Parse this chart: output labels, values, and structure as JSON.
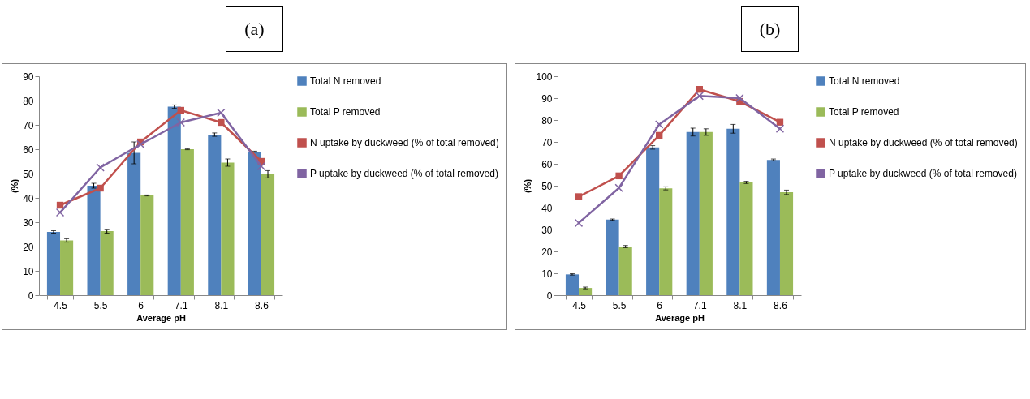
{
  "chart_data": [
    {
      "type": "bar",
      "title": "(a)",
      "xlabel": "Average pH",
      "ylabel": "(%)",
      "categories": [
        "4.5",
        "5.5",
        "6",
        "7.1",
        "8.1",
        "8.6"
      ],
      "ylim": [
        0,
        90
      ],
      "yticks": [
        0,
        10,
        20,
        30,
        40,
        50,
        60,
        70,
        80,
        90
      ],
      "legend": "right",
      "grid": false,
      "series": [
        {
          "name": "Total N removed",
          "type": "bar",
          "color": "#4f81bd",
          "values": [
            26,
            45,
            58.5,
            77.5,
            66,
            59
          ],
          "errors": [
            0.5,
            1,
            4.5,
            0.7,
            0.7,
            0.2
          ]
        },
        {
          "name": "Total P removed",
          "type": "bar",
          "color": "#9bbb59",
          "values": [
            22.5,
            26.3,
            41,
            60,
            54.5,
            49.7
          ],
          "errors": [
            0.7,
            0.8,
            0.2,
            0.2,
            1.5,
            1.5
          ]
        },
        {
          "name": "N uptake by duckweed (% of total removed)",
          "type": "line",
          "marker": "square",
          "color": "#c0504d",
          "values": [
            37,
            44,
            63,
            76,
            71,
            55
          ]
        },
        {
          "name": "P uptake by duckweed (% of total removed)",
          "type": "line",
          "marker": "cross",
          "color": "#8064a2",
          "values": [
            34,
            52.5,
            62,
            71,
            75,
            53
          ]
        }
      ]
    },
    {
      "type": "bar",
      "title": "(b)",
      "xlabel": "Average pH",
      "ylabel": "(%)",
      "categories": [
        "4.5",
        "5.5",
        "6",
        "7.1",
        "8.1",
        "8.6"
      ],
      "ylim": [
        0,
        100
      ],
      "yticks": [
        0,
        10,
        20,
        30,
        40,
        50,
        60,
        70,
        80,
        90,
        100
      ],
      "legend": "right",
      "grid": false,
      "series": [
        {
          "name": "Total N removed",
          "type": "bar",
          "color": "#4f81bd",
          "values": [
            9.5,
            34.5,
            67.5,
            74.5,
            76,
            61.8
          ],
          "errors": [
            0.3,
            0.3,
            0.8,
            1.8,
            2,
            0.4
          ]
        },
        {
          "name": "Total P removed",
          "type": "bar",
          "color": "#9bbb59",
          "values": [
            3.3,
            22.2,
            48.8,
            74.5,
            51.5,
            47
          ],
          "errors": [
            0.4,
            0.5,
            0.7,
            1.5,
            0.5,
            1
          ]
        },
        {
          "name": "N uptake by duckweed (% of total removed)",
          "type": "line",
          "marker": "square",
          "color": "#c0504d",
          "values": [
            45,
            54.5,
            73,
            94,
            88.5,
            79
          ]
        },
        {
          "name": "P uptake by duckweed (% of total removed)",
          "type": "line",
          "marker": "cross",
          "color": "#8064a2",
          "values": [
            33,
            49,
            78,
            91,
            90,
            76
          ]
        }
      ]
    }
  ]
}
